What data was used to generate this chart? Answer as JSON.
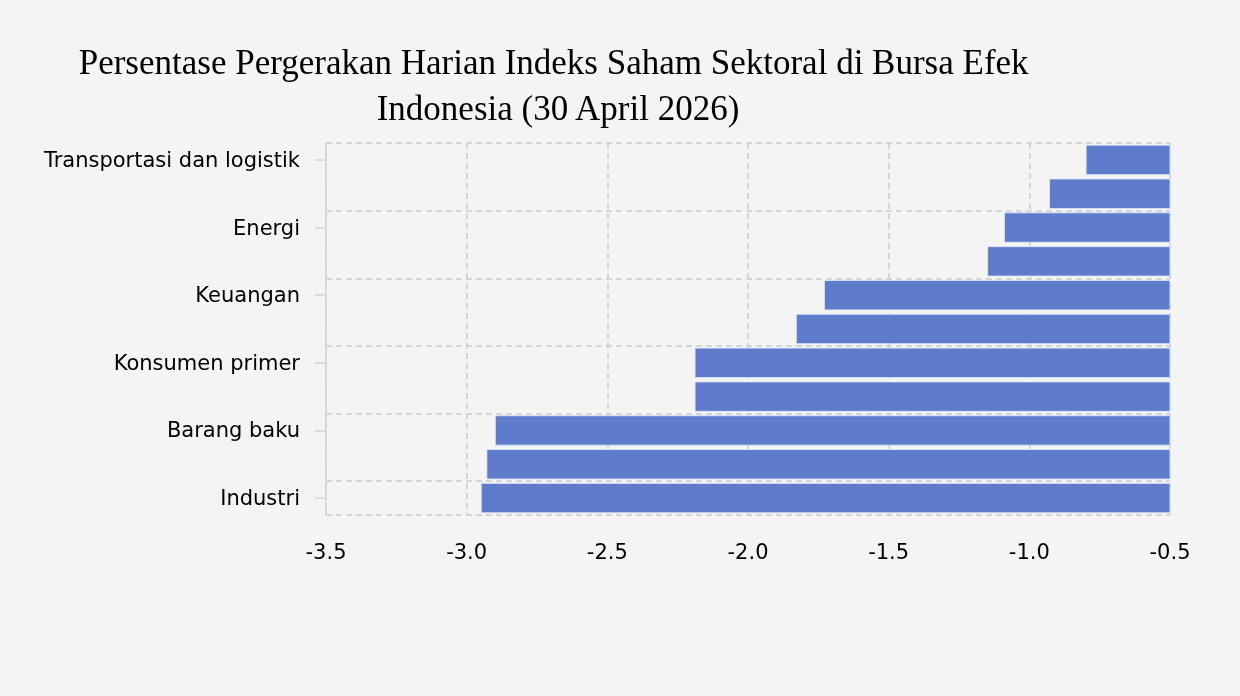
{
  "chart_data": {
    "type": "bar",
    "orientation": "horizontal",
    "title": "Persentase Pergerakan Harian Indeks Saham Sektoral di Bursa Efek Indonesia (30 April 2026)",
    "categories": [
      "Transportasi dan logistik",
      null,
      "Energi",
      null,
      "Keuangan",
      null,
      "Konsumen primer",
      null,
      "Barang baku",
      null,
      "Industri"
    ],
    "values": [
      -0.8,
      -0.93,
      -1.09,
      -1.15,
      -1.73,
      -1.83,
      -2.19,
      -2.19,
      -2.9,
      -2.93,
      -2.95
    ],
    "color": "#5f7bcb",
    "xlim": [
      -3.5,
      -0.5
    ],
    "xticks": [
      -3.5,
      {
        "value": -3,
        "label": "-3.0"
      },
      -2.5,
      {
        "value": -2,
        "label": "-2.0"
      },
      -1.5,
      {
        "value": -1,
        "label": "-1.0"
      },
      -0.5
    ],
    "grid": true
  }
}
